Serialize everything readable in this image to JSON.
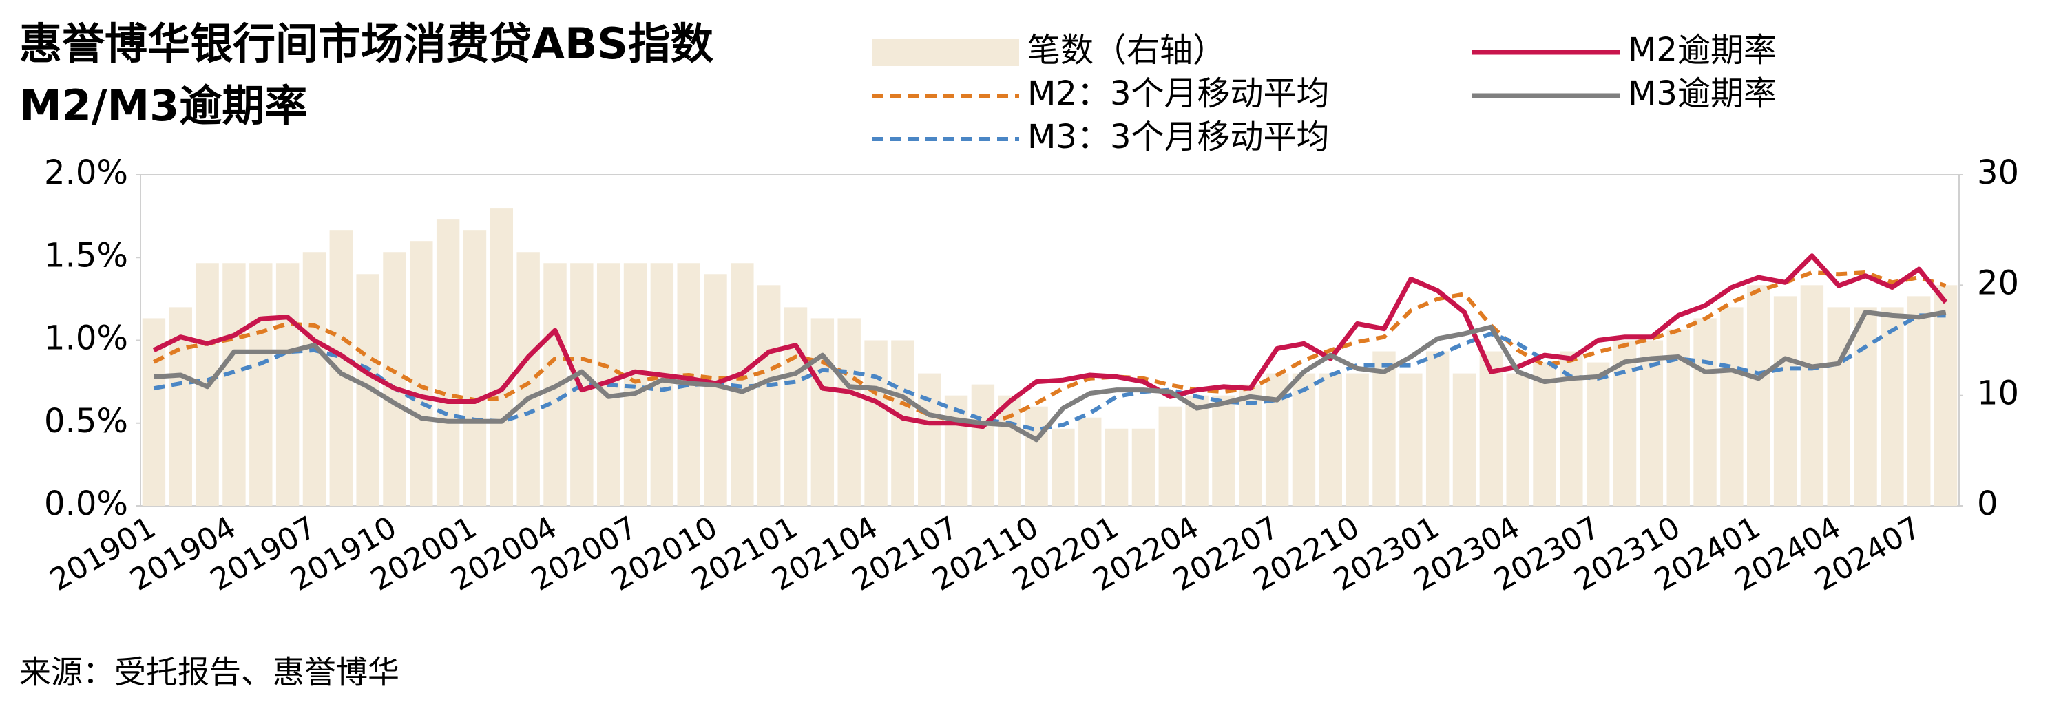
{
  "chart_data": {
    "type": "combo",
    "title": [
      "惠誉博华银行间市场消费贷ABS指数",
      "M2/M3逾期率"
    ],
    "source": "来源：受托报告、惠誉博华",
    "categories": [
      "201901",
      null,
      null,
      "201904",
      null,
      null,
      "201907",
      null,
      null,
      "201910",
      null,
      null,
      "202001",
      null,
      null,
      "202004",
      null,
      null,
      "202007",
      null,
      null,
      "202010",
      null,
      null,
      "202101",
      null,
      null,
      "202104",
      null,
      null,
      "202107",
      null,
      null,
      "202110",
      null,
      null,
      "202201",
      null,
      null,
      "202204",
      null,
      null,
      "202207",
      null,
      null,
      "202210",
      null,
      null,
      "202301",
      null,
      null,
      "202304",
      null,
      null,
      "202307",
      null,
      null,
      "202310",
      null,
      null,
      "202401",
      null,
      null,
      "202404",
      null,
      null,
      "202407",
      null
    ],
    "ylim": [
      0,
      2.0
    ],
    "yticks": [
      {
        "value": 0,
        "label": "0.0%"
      },
      {
        "value": 0.5,
        "label": "0.5%"
      },
      {
        "value": 1.0,
        "label": "1.0%"
      },
      {
        "value": 1.5,
        "label": "1.5%"
      },
      {
        "value": 2.0,
        "label": "2.0%"
      }
    ],
    "y2lim": [
      0,
      30
    ],
    "y2ticks": [
      0,
      10,
      20,
      30
    ],
    "series": [
      {
        "name": "笔数（右轴）",
        "type": "bar",
        "axis": "y2",
        "color": "#f3ead9",
        "values": [
          17,
          18,
          22,
          22,
          22,
          22,
          23,
          25,
          21,
          23,
          24,
          26,
          25,
          27,
          23,
          22,
          22,
          22,
          22,
          22,
          22,
          21,
          22,
          20,
          18,
          17,
          17,
          15,
          15,
          12,
          10,
          11,
          10,
          9,
          7,
          8,
          7,
          7,
          9,
          10,
          10,
          11,
          12,
          12,
          12,
          12,
          14,
          12,
          14,
          12,
          14,
          12,
          13,
          14,
          13,
          15,
          15,
          16,
          17,
          18,
          20,
          19,
          20,
          18,
          18,
          18,
          19,
          20
        ]
      },
      {
        "name": "M2：3个月移动平均",
        "type": "line",
        "style": "dashed",
        "color": "#e07b22",
        "values": [
          0.87,
          0.95,
          0.98,
          1.01,
          1.05,
          1.1,
          1.09,
          1.02,
          0.9,
          0.81,
          0.72,
          0.67,
          0.64,
          0.65,
          0.74,
          0.89,
          0.89,
          0.84,
          0.75,
          0.78,
          0.79,
          0.77,
          0.77,
          0.82,
          0.9,
          0.87,
          0.79,
          0.68,
          0.62,
          0.55,
          0.51,
          0.49,
          0.54,
          0.62,
          0.71,
          0.77,
          0.78,
          0.77,
          0.73,
          0.7,
          0.69,
          0.71,
          0.79,
          0.88,
          0.94,
          0.99,
          1.02,
          1.18,
          1.25,
          1.28,
          1.09,
          0.94,
          0.85,
          0.88,
          0.93,
          0.97,
          1.01,
          1.06,
          1.13,
          1.23,
          1.3,
          1.35,
          1.41,
          1.4,
          1.41,
          1.35,
          1.38,
          1.33
        ]
      },
      {
        "name": "M3：3个月移动平均",
        "type": "line",
        "style": "dashed",
        "color": "#4a86c5",
        "values": [
          0.71,
          0.74,
          0.76,
          0.81,
          0.86,
          0.93,
          0.94,
          0.9,
          0.83,
          0.71,
          0.62,
          0.55,
          0.52,
          0.51,
          0.56,
          0.63,
          0.73,
          0.73,
          0.72,
          0.7,
          0.73,
          0.74,
          0.72,
          0.73,
          0.75,
          0.82,
          0.81,
          0.78,
          0.7,
          0.64,
          0.58,
          0.52,
          0.5,
          0.46,
          0.49,
          0.56,
          0.66,
          0.69,
          0.7,
          0.66,
          0.63,
          0.62,
          0.64,
          0.7,
          0.79,
          0.85,
          0.85,
          0.85,
          0.91,
          0.98,
          1.04,
          0.98,
          0.88,
          0.78,
          0.77,
          0.81,
          0.85,
          0.89,
          0.87,
          0.84,
          0.8,
          0.83,
          0.83,
          0.86,
          0.96,
          1.06,
          1.15,
          1.15
        ]
      },
      {
        "name": "M2逾期率",
        "type": "line",
        "style": "solid",
        "color": "#c8154c",
        "values": [
          0.94,
          1.02,
          0.98,
          1.03,
          1.13,
          1.14,
          1.0,
          0.91,
          0.8,
          0.71,
          0.66,
          0.63,
          0.63,
          0.7,
          0.9,
          1.06,
          0.7,
          0.75,
          0.81,
          0.79,
          0.77,
          0.74,
          0.8,
          0.93,
          0.97,
          0.71,
          0.69,
          0.63,
          0.53,
          0.5,
          0.5,
          0.48,
          0.63,
          0.75,
          0.76,
          0.79,
          0.78,
          0.75,
          0.66,
          0.7,
          0.72,
          0.71,
          0.95,
          0.98,
          0.89,
          1.1,
          1.07,
          1.37,
          1.3,
          1.17,
          0.81,
          0.84,
          0.91,
          0.89,
          1.0,
          1.02,
          1.02,
          1.15,
          1.21,
          1.32,
          1.38,
          1.35,
          1.51,
          1.33,
          1.39,
          1.32,
          1.43,
          1.23
        ]
      },
      {
        "name": "M3逾期率",
        "type": "line",
        "style": "solid",
        "color": "#7f7f7f",
        "values": [
          0.78,
          0.79,
          0.72,
          0.93,
          0.93,
          0.93,
          0.97,
          0.8,
          0.72,
          0.62,
          0.53,
          0.51,
          0.51,
          0.51,
          0.65,
          0.72,
          0.81,
          0.66,
          0.68,
          0.76,
          0.74,
          0.73,
          0.69,
          0.76,
          0.8,
          0.91,
          0.72,
          0.71,
          0.66,
          0.55,
          0.52,
          0.5,
          0.49,
          0.4,
          0.59,
          0.68,
          0.7,
          0.7,
          0.69,
          0.59,
          0.62,
          0.66,
          0.64,
          0.81,
          0.91,
          0.83,
          0.81,
          0.9,
          1.01,
          1.04,
          1.08,
          0.81,
          0.75,
          0.77,
          0.78,
          0.87,
          0.89,
          0.9,
          0.81,
          0.82,
          0.77,
          0.89,
          0.84,
          0.86,
          1.17,
          1.15,
          1.14,
          1.17
        ]
      }
    ]
  }
}
